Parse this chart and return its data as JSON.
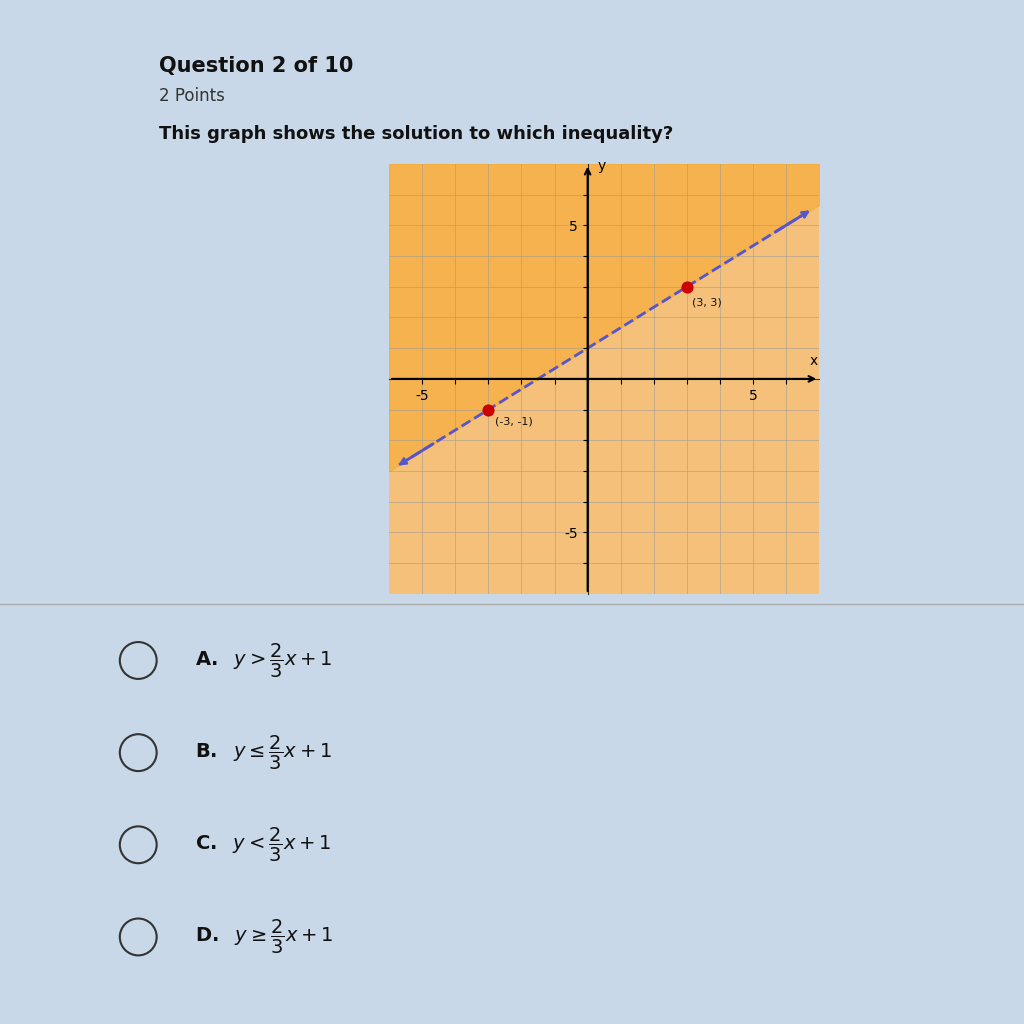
{
  "title_bold": "Question 2 of 10",
  "title_sub": "2 Points",
  "question_text": "This graph shows the solution to which inequality?",
  "bg_color": "#c8d8e8",
  "graph_bg": "#f5c07a",
  "xlim": [
    -6,
    7
  ],
  "ylim": [
    -7,
    7
  ],
  "slope": 0.6667,
  "intercept": 1,
  "line_color": "#5555cc",
  "line_width": 2.0,
  "shade_color": "#f5a623",
  "shade_alpha": 0.5,
  "point1": [
    -3,
    -1
  ],
  "point2": [
    3,
    3
  ],
  "point_color": "#cc0000",
  "point_size": 60,
  "axis_label_x": "x",
  "axis_label_y": "y",
  "grid_color": "#999999",
  "graph_border_color": "#333333",
  "separator_y": 0.41
}
